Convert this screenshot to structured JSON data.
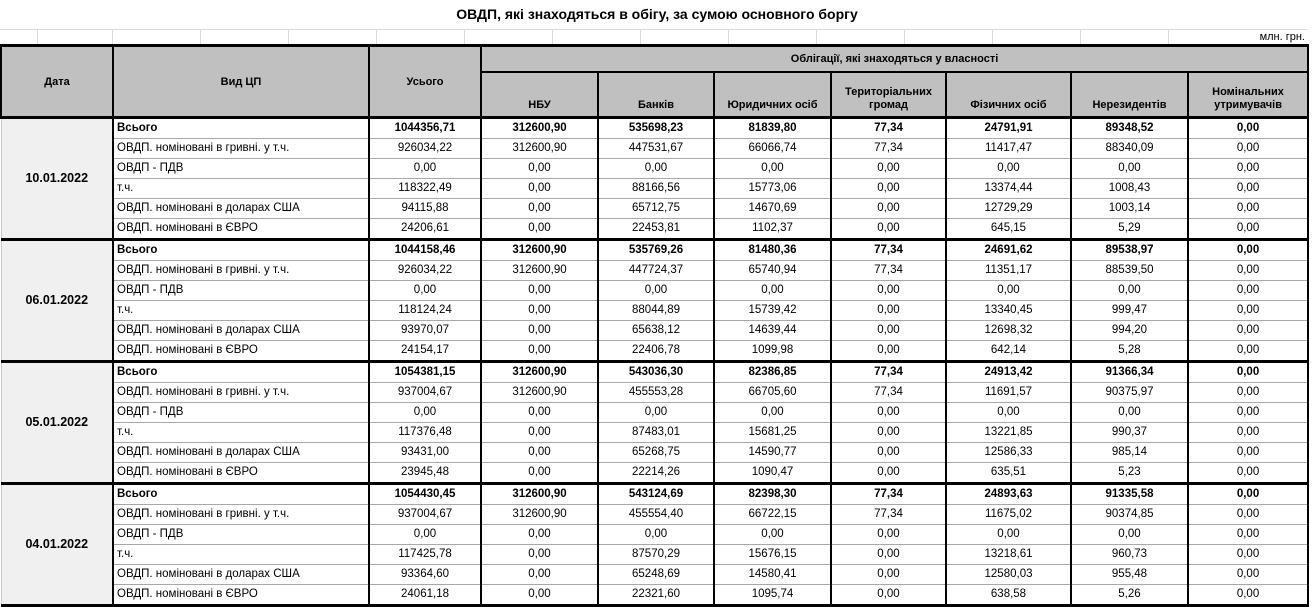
{
  "title": "ОВДП, які знаходяться в обігу, за сумою основного боргу",
  "units_label": "млн. грн.",
  "table": {
    "columns": [
      "Дата",
      "Вид ЦП",
      "Усього"
    ],
    "group_header": "Облігації, які знаходяться у власності",
    "sub_columns": [
      "НБУ",
      "Банків",
      "Юридичних осіб",
      "Територіальних громад",
      "Фізичних осіб",
      "Нерезидентів",
      "Номінальних утримувачів"
    ],
    "row_labels": [
      "Всього",
      "ОВДП. номіновані в гривні. у т.ч.",
      "ОВДП - ПДВ",
      "т.ч.",
      "ОВДП. номіновані в доларах США",
      "ОВДП. номіновані в ЄВРО"
    ],
    "blocks": [
      {
        "date": "10.01.2022",
        "rows": [
          [
            "1044356,71",
            "312600,90",
            "535698,23",
            "81839,80",
            "77,34",
            "24791,91",
            "89348,52",
            "0,00"
          ],
          [
            "926034,22",
            "312600,90",
            "447531,67",
            "66066,74",
            "77,34",
            "11417,47",
            "88340,09",
            "0,00"
          ],
          [
            "0,00",
            "0,00",
            "0,00",
            "0,00",
            "0,00",
            "0,00",
            "0,00",
            "0,00"
          ],
          [
            "118322,49",
            "0,00",
            "88166,56",
            "15773,06",
            "0,00",
            "13374,44",
            "1008,43",
            "0,00"
          ],
          [
            "94115,88",
            "0,00",
            "65712,75",
            "14670,69",
            "0,00",
            "12729,29",
            "1003,14",
            "0,00"
          ],
          [
            "24206,61",
            "0,00",
            "22453,81",
            "1102,37",
            "0,00",
            "645,15",
            "5,29",
            "0,00"
          ]
        ]
      },
      {
        "date": "06.01.2022",
        "rows": [
          [
            "1044158,46",
            "312600,90",
            "535769,26",
            "81480,36",
            "77,34",
            "24691,62",
            "89538,97",
            "0,00"
          ],
          [
            "926034,22",
            "312600,90",
            "447724,37",
            "65740,94",
            "77,34",
            "11351,17",
            "88539,50",
            "0,00"
          ],
          [
            "0,00",
            "0,00",
            "0,00",
            "0,00",
            "0,00",
            "0,00",
            "0,00",
            "0,00"
          ],
          [
            "118124,24",
            "0,00",
            "88044,89",
            "15739,42",
            "0,00",
            "13340,45",
            "999,47",
            "0,00"
          ],
          [
            "93970,07",
            "0,00",
            "65638,12",
            "14639,44",
            "0,00",
            "12698,32",
            "994,20",
            "0,00"
          ],
          [
            "24154,17",
            "0,00",
            "22406,78",
            "1099,98",
            "0,00",
            "642,14",
            "5,28",
            "0,00"
          ]
        ]
      },
      {
        "date": "05.01.2022",
        "rows": [
          [
            "1054381,15",
            "312600,90",
            "543036,30",
            "82386,85",
            "77,34",
            "24913,42",
            "91366,34",
            "0,00"
          ],
          [
            "937004,67",
            "312600,90",
            "455553,28",
            "66705,60",
            "77,34",
            "11691,57",
            "90375,97",
            "0,00"
          ],
          [
            "0,00",
            "0,00",
            "0,00",
            "0,00",
            "0,00",
            "0,00",
            "0,00",
            "0,00"
          ],
          [
            "117376,48",
            "0,00",
            "87483,01",
            "15681,25",
            "0,00",
            "13221,85",
            "990,37",
            "0,00"
          ],
          [
            "93431,00",
            "0,00",
            "65268,75",
            "14590,77",
            "0,00",
            "12586,33",
            "985,14",
            "0,00"
          ],
          [
            "23945,48",
            "0,00",
            "22214,26",
            "1090,47",
            "0,00",
            "635,51",
            "5,23",
            "0,00"
          ]
        ]
      },
      {
        "date": "04.01.2022",
        "rows": [
          [
            "1054430,45",
            "312600,90",
            "543124,69",
            "82398,30",
            "77,34",
            "24893,63",
            "91335,58",
            "0,00"
          ],
          [
            "937004,67",
            "312600,90",
            "455554,40",
            "66722,15",
            "77,34",
            "11675,02",
            "90374,85",
            "0,00"
          ],
          [
            "0,00",
            "0,00",
            "0,00",
            "0,00",
            "0,00",
            "0,00",
            "0,00",
            "0,00"
          ],
          [
            "117425,78",
            "0,00",
            "87570,29",
            "15676,15",
            "0,00",
            "13218,61",
            "960,73",
            "0,00"
          ],
          [
            "93364,60",
            "0,00",
            "65248,69",
            "14580,41",
            "0,00",
            "12580,03",
            "955,48",
            "0,00"
          ],
          [
            "24061,18",
            "0,00",
            "22321,60",
            "1095,74",
            "0,00",
            "638,58",
            "5,26",
            "0,00"
          ]
        ]
      }
    ],
    "colors": {
      "header_bg": "#c0c0c0",
      "date_cell_bg": "#f0f0f0",
      "border": "#000000",
      "row_separator": "#a8a8a8"
    }
  }
}
